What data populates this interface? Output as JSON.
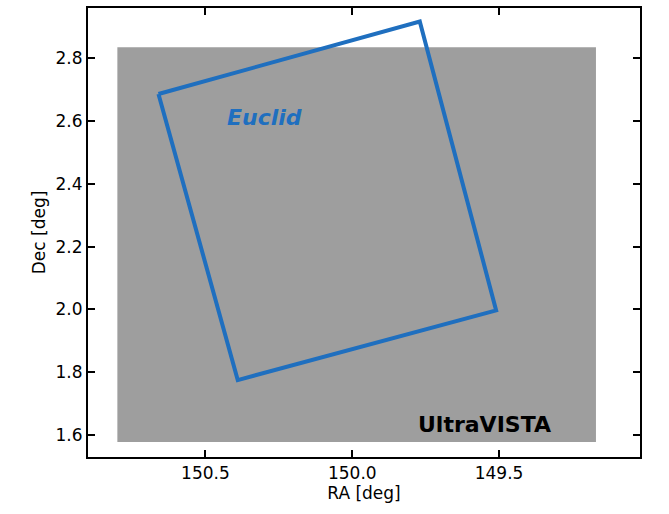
{
  "chart_data": {
    "type": "footprint",
    "x_label": "RA [deg]",
    "y_label": "Dec [deg]",
    "xlim": [
      150.9,
      149.02
    ],
    "ylim": [
      1.53,
      2.96
    ],
    "xticks": [
      {
        "value": 150.5,
        "label": "150.5"
      },
      {
        "value": 150,
        "label": "150.0"
      },
      {
        "value": 149.5,
        "label": "149.5"
      }
    ],
    "yticks": [
      1.6,
      1.8,
      {
        "value": 2,
        "label": "2.0"
      },
      2.2,
      2.4,
      2.6,
      2.8
    ],
    "grid": false,
    "series": [
      {
        "name": "UltraVISTA",
        "type": "area",
        "color": "#9e9e9e",
        "x": [
          150.8,
          149.17,
          149.17,
          150.8
        ],
        "y": [
          1.578,
          1.578,
          2.835,
          2.835
        ]
      },
      {
        "name": "Euclid",
        "type": "outline",
        "color": "#1f6fbf",
        "x": [
          150.66,
          149.77,
          149.51,
          150.39
        ],
        "y": [
          2.686,
          2.917,
          1.997,
          1.775
        ]
      }
    ],
    "annotations": [
      {
        "text": "Euclid",
        "x": 150.3,
        "y": 2.61,
        "color": "#1f6fbf"
      },
      {
        "text": "UltraVISTA",
        "x": 149.55,
        "y": 1.635,
        "color": "#000000"
      }
    ]
  }
}
